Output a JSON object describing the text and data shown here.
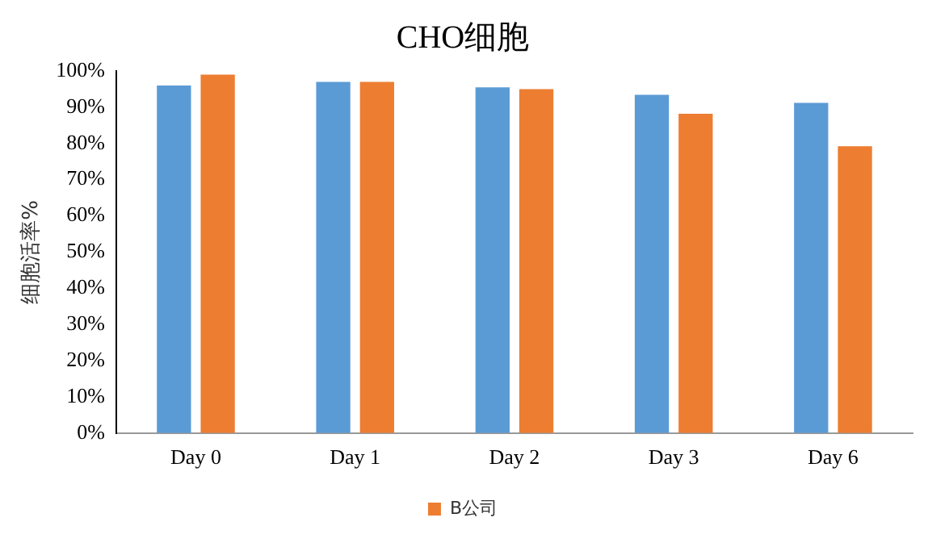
{
  "chart_data": {
    "type": "bar",
    "title": "CHO细胞",
    "ylabel": "细胞活率%",
    "categories": [
      "Day 0",
      "Day 1",
      "Day 2",
      "Day 3",
      "Day 6"
    ],
    "series": [
      {
        "color": "#5b9bd5",
        "values": [
          96,
          97,
          95.5,
          93.4,
          91.2
        ]
      },
      {
        "name": "B公司",
        "color": "#ed7d31",
        "values": [
          99,
          97,
          95,
          88.2,
          79.2
        ]
      }
    ],
    "ylim": [
      0,
      100
    ],
    "yticks": [
      {
        "value": 0,
        "label": "0%"
      },
      {
        "value": 10,
        "label": "10%"
      },
      {
        "value": 20,
        "label": "20%"
      },
      {
        "value": 30,
        "label": "30%"
      },
      {
        "value": 40,
        "label": "40%"
      },
      {
        "value": 50,
        "label": "50%"
      },
      {
        "value": 60,
        "label": "60%"
      },
      {
        "value": 70,
        "label": "70%"
      },
      {
        "value": 80,
        "label": "80%"
      },
      {
        "value": 90,
        "label": "90%"
      },
      {
        "value": 100,
        "label": "100%"
      }
    ],
    "grid": false,
    "legend": "bottom"
  }
}
